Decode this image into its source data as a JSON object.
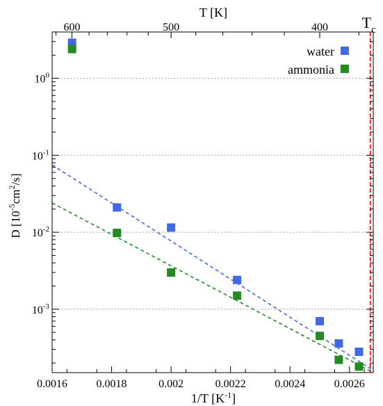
{
  "chart_data": {
    "type": "scatter",
    "xlabel_base": "1/T [K",
    "xlabel_exp": "-1",
    "xlabel_tail": "]",
    "ylabel": {
      "p1": "D [10",
      "e1": "-5",
      "p2": "cm",
      "e2": "2",
      "p3": "/s]"
    },
    "top_xlabel": "T [K]",
    "xlim": [
      0.0016,
      0.00268
    ],
    "ylim": [
      0.00015,
      4.0
    ],
    "y_scale": "log",
    "grid": "horizontal dotted at decades",
    "x_ticks": [
      {
        "v": 0.0016,
        "label": "0.0016"
      },
      {
        "v": 0.0018,
        "label": "0.0018"
      },
      {
        "v": 0.002,
        "label": "0.002"
      },
      {
        "v": 0.0022,
        "label": "0.0022"
      },
      {
        "v": 0.0024,
        "label": "0.0024"
      },
      {
        "v": 0.0026,
        "label": "0.0026"
      }
    ],
    "top_ticks": [
      {
        "T": 600,
        "label": "600"
      },
      {
        "T": 500,
        "label": "500"
      },
      {
        "T": 400,
        "label": "400"
      }
    ],
    "y_ticks": [
      {
        "v": 0.001,
        "base": "10",
        "exp": "-3"
      },
      {
        "v": 0.01,
        "base": "10",
        "exp": "-2"
      },
      {
        "v": 0.1,
        "base": "10",
        "exp": "-1"
      },
      {
        "v": 1,
        "base": "10",
        "exp": "0"
      }
    ],
    "series": [
      {
        "name": "water",
        "color": "#4169e1",
        "x": [
          0.001667,
          0.001818,
          0.002,
          0.002222,
          0.0025,
          0.002564,
          0.002632
        ],
        "y": [
          2.9,
          0.021,
          0.0115,
          0.0024,
          0.0007,
          0.00036,
          0.00028
        ]
      },
      {
        "name": "ammonia",
        "color": "#228b22",
        "x": [
          0.001667,
          0.001818,
          0.002,
          0.002222,
          0.0025,
          0.002564,
          0.002632
        ],
        "y": [
          2.4,
          0.0098,
          0.003,
          0.0015,
          0.00045,
          0.00022,
          0.00018
        ]
      }
    ],
    "fits": [
      {
        "color": "#4169e1",
        "x": [
          0.0016,
          0.00268
        ],
        "y": [
          0.075,
          0.00016
        ]
      },
      {
        "color": "#228b22",
        "x": [
          0.0016,
          0.00268
        ],
        "y": [
          0.024,
          8.5e-05
        ]
      }
    ],
    "critical_line": {
      "x": 0.00267,
      "label_base": "T",
      "label_sub": "c",
      "color": "#dd0000"
    },
    "legend_position": "top-right"
  }
}
